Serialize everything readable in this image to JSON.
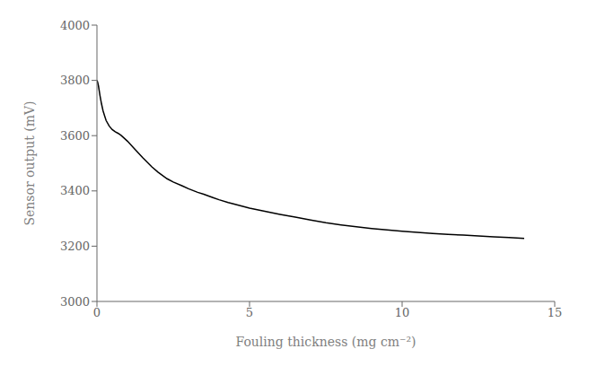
{
  "chart_data": {
    "type": "line",
    "x": [
      0.0,
      0.02,
      0.05,
      0.1,
      0.15,
      0.2,
      0.25,
      0.3,
      0.4,
      0.5,
      0.6,
      0.7,
      0.8,
      1.0,
      1.2,
      1.5,
      1.8,
      2.0,
      2.3,
      2.5,
      2.8,
      3.0,
      3.3,
      3.5,
      3.8,
      4.0,
      4.3,
      4.5,
      5.0,
      5.5,
      6.0,
      6.5,
      7.0,
      7.5,
      8.0,
      8.5,
      9.0,
      9.5,
      10.0,
      10.5,
      11.0,
      11.5,
      12.0,
      12.5,
      13.0,
      13.5,
      14.0
    ],
    "values": [
      3800,
      3795,
      3780,
      3745,
      3715,
      3690,
      3672,
      3655,
      3635,
      3622,
      3614,
      3608,
      3600,
      3580,
      3556,
      3520,
      3487,
      3468,
      3444,
      3432,
      3418,
      3408,
      3395,
      3388,
      3376,
      3368,
      3358,
      3352,
      3338,
      3326,
      3315,
      3305,
      3295,
      3285,
      3277,
      3270,
      3264,
      3259,
      3254,
      3250,
      3246,
      3243,
      3240,
      3237,
      3234,
      3231,
      3228
    ],
    "color": "#000000",
    "xlabel": "Fouling thickness (mg cm⁻²)",
    "ylabel": "Sensor output (mV)",
    "xlim": [
      0,
      15
    ],
    "ylim": [
      3000,
      4000
    ],
    "xticks": [
      0,
      5,
      10,
      15
    ],
    "yticks": [
      3000,
      3200,
      3400,
      3600,
      3800,
      4000
    ],
    "grid": false
  }
}
